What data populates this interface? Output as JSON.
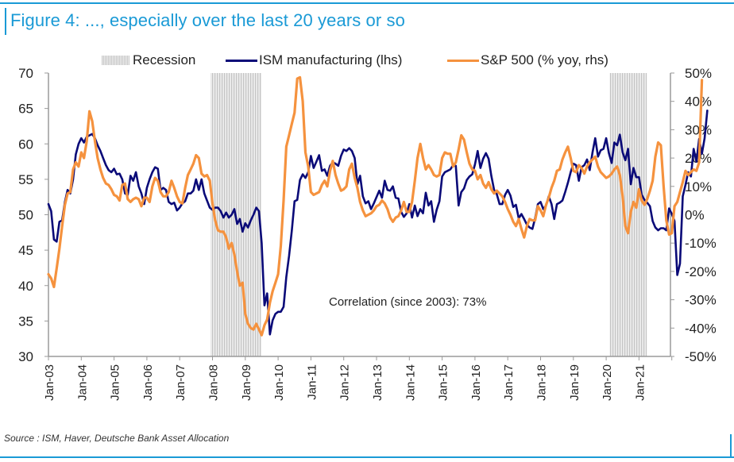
{
  "title": "Figure 4: ..., especially over the last 20 years or so",
  "source": "Source : ISM, Haver, Deutsche Bank Asset Allocation",
  "annotation": "Correlation (since 2003): 73%",
  "legend": {
    "recession": "Recession",
    "ism": "ISM manufacturing (lhs)",
    "sp": "S&P 500 (% yoy, rhs)"
  },
  "colors": {
    "title": "#1a9ad6",
    "ism": "#0a0a78",
    "sp": "#f5923e",
    "recession": "#cfcfcf",
    "axis": "#9a9a9a"
  },
  "chart_data": {
    "type": "line",
    "title": "Figure 4: ..., especially over the last 20 years or so",
    "xlabel": "",
    "ylabel_left": "ISM manufacturing (lhs)",
    "ylabel_right": "S&P 500 (% yoy, rhs)",
    "x_start": "2003-01",
    "x_end": "2021-03",
    "x_frequency": "monthly",
    "x_tick_labels": [
      "Jan-03",
      "Jan-04",
      "Jan-05",
      "Jan-06",
      "Jan-07",
      "Jan-08",
      "Jan-09",
      "Jan-10",
      "Jan-11",
      "Jan-12",
      "Jan-13",
      "Jan-14",
      "Jan-15",
      "Jan-16",
      "Jan-17",
      "Jan-18",
      "Jan-19",
      "Jan-20",
      "Jan-21"
    ],
    "x_axis_end": "2022-01",
    "ylim_left": [
      30,
      70
    ],
    "yticks_left": [
      "70",
      "65",
      "60",
      "55",
      "50",
      "45",
      "40",
      "35",
      "30"
    ],
    "yticks_left_values": [
      70,
      65,
      60,
      55,
      50,
      45,
      40,
      35,
      30
    ],
    "ylim_right": [
      -50,
      50
    ],
    "yticks_right": [
      "50%",
      "40%",
      "30%",
      "20%",
      "10%",
      "0%",
      "-10%",
      "-20%",
      "-30%",
      "-40%",
      "-50%"
    ],
    "yticks_right_values": [
      50,
      40,
      30,
      20,
      10,
      0,
      -10,
      -20,
      -30,
      -40,
      -50
    ],
    "grid": false,
    "legend_position": "top",
    "recessions": [
      {
        "start": "2007-12",
        "end": "2009-06"
      },
      {
        "start": "2020-02",
        "end": "2021-03"
      }
    ],
    "series": [
      {
        "name": "ISM manufacturing (lhs)",
        "axis": "left",
        "values": [
          51.5,
          50.5,
          46.5,
          46.2,
          49.0,
          49.2,
          51.8,
          53.5,
          53.0,
          55.0,
          58.5,
          60.0,
          60.8,
          60.2,
          61.0,
          61.2,
          61.4,
          60.8,
          59.8,
          59.0,
          58.0,
          57.0,
          56.3,
          56.0,
          56.5,
          55.7,
          55.8,
          55.0,
          53.0,
          52.8,
          55.5,
          54.8,
          56.0,
          54.0,
          53.0,
          51.5,
          53.8,
          55.0,
          56.0,
          56.7,
          56.5,
          53.5,
          53.8,
          53.5,
          51.8,
          51.5,
          51.7,
          50.6,
          51.0,
          51.6,
          51.9,
          53.0,
          53.0,
          53.4,
          55.0,
          53.5,
          55.0,
          53.0,
          52.0,
          51.0,
          50.7,
          51.0,
          51.0,
          50.5,
          49.6,
          50.3,
          49.6,
          50.0,
          50.8,
          48.7,
          49.4,
          47.6,
          48.8,
          48.2,
          49.2,
          50.0,
          51.0,
          50.5,
          46.0,
          37.2,
          38.9,
          33.1,
          35.1,
          36.0,
          36.3,
          36.3,
          37.0,
          41.2,
          44.2,
          47.7,
          51.9,
          52.1,
          54.9,
          55.7,
          55.2,
          56.0,
          58.3,
          56.6,
          57.5,
          58.4,
          56.2,
          56.4,
          55.5,
          56.9,
          57.4,
          57.2,
          56.9,
          58.3,
          59.2,
          59.0,
          59.4,
          59.0,
          58.0,
          54.3,
          55.5,
          52.6,
          51.6,
          51.9,
          50.8,
          51.6,
          52.5,
          53.4,
          52.4,
          54.8,
          53.5,
          53.4,
          54.0,
          52.4,
          52.3,
          50.4,
          49.7,
          50.2,
          51.5,
          49.6,
          51.3,
          49.8,
          50.8,
          50.2,
          53.1,
          51.3,
          51.9,
          49.0,
          50.7,
          51.9,
          55.4,
          56.0,
          56.2,
          56.4,
          57.0,
          56.9,
          51.3,
          53.2,
          53.7,
          54.9,
          55.4,
          55.7,
          57.1,
          59.0,
          56.6,
          57.9,
          58.7,
          57.9,
          55.5,
          53.5,
          52.9,
          51.5,
          51.5,
          52.8,
          53.5,
          52.7,
          51.1,
          51.4,
          49.5,
          50.1,
          49.4,
          48.6,
          48.2,
          48.0,
          49.5,
          51.5,
          51.8,
          50.8,
          51.3,
          52.6,
          51.5,
          49.4,
          51.5,
          51.7,
          52.0,
          53.2,
          54.5,
          56.0,
          57.2,
          57.0,
          54.8,
          56.7,
          57.0,
          57.8,
          56.3,
          58.8,
          60.8,
          58.2,
          59.1,
          59.3,
          60.8,
          58.7,
          57.3,
          60.2,
          59.8,
          61.3,
          58.8,
          57.7,
          59.3,
          54.3,
          56.6,
          55.3,
          55.3,
          52.8,
          52.1,
          51.7,
          51.2,
          49.1,
          48.2,
          47.8,
          48.1,
          48.1,
          47.8,
          50.9,
          50.1,
          49.1,
          41.5,
          43.1,
          52.6,
          54.2,
          56.0,
          55.4,
          59.3,
          57.5,
          60.7,
          58.6,
          60.8,
          64.7
        ]
      },
      {
        "name": "S&P 500 (% yoy, rhs)",
        "axis": "right",
        "values": [
          -21.0,
          -22.5,
          -25.5,
          -19.0,
          -12.0,
          -4.0,
          3.5,
          7.5,
          8.0,
          16.0,
          18.5,
          17.0,
          22.0,
          20.0,
          26.0,
          36.5,
          33.0,
          26.0,
          20.0,
          16.0,
          13.0,
          11.0,
          10.5,
          9.0,
          7.0,
          6.5,
          5.0,
          10.5,
          11.0,
          5.5,
          4.5,
          5.5,
          6.0,
          5.5,
          3.0,
          6.0,
          6.0,
          4.5,
          10.0,
          13.0,
          12.0,
          8.0,
          6.5,
          6.5,
          8.0,
          12.0,
          9.5,
          6.5,
          4.5,
          4.0,
          9.5,
          14.0,
          16.0,
          18.0,
          21.0,
          20.0,
          14.5,
          13.5,
          14.0,
          12.0,
          4.0,
          -2.0,
          -5.5,
          -6.0,
          -6.0,
          -8.0,
          -12.0,
          -10.0,
          -14.0,
          -20.0,
          -25.0,
          -24.0,
          -35.0,
          -38.5,
          -40.0,
          -40.5,
          -38.5,
          -40.5,
          -42.5,
          -39.0,
          -37.0,
          -31.0,
          -27.0,
          -24.0,
          -21.0,
          -11.0,
          5.0,
          24.0,
          28.0,
          32.0,
          36.0,
          48.0,
          48.5,
          40.0,
          22.0,
          17.0,
          8.0,
          7.0,
          7.5,
          8.0,
          10.5,
          12.0,
          10.0,
          15.5,
          19.0,
          14.0,
          11.0,
          8.5,
          9.0,
          10.0,
          16.0,
          18.0,
          13.0,
          9.5,
          4.5,
          1.5,
          -0.5,
          0.0,
          0.5,
          1.5,
          3.0,
          3.5,
          5.0,
          4.0,
          2.0,
          -1.0,
          -2.5,
          -1.0,
          -0.5,
          1.5,
          4.5,
          1.0,
          1.0,
          4.5,
          12.0,
          20.0,
          25.0,
          20.0,
          16.0,
          17.5,
          16.0,
          14.0,
          13.5,
          14.0,
          20.0,
          22.0,
          21.5,
          21.5,
          17.0,
          18.5,
          23.0,
          28.0,
          26.5,
          22.0,
          18.0,
          16.0,
          15.5,
          12.5,
          14.0,
          11.0,
          9.5,
          11.5,
          9.0,
          7.5,
          8.5,
          7.5,
          6.5,
          4.5,
          2.0,
          0.0,
          -2.5,
          -4.0,
          -1.5,
          -5.0,
          -8.0,
          -4.0,
          -1.5,
          -2.0,
          -2.0,
          3.0,
          1.5,
          -0.5,
          3.5,
          6.0,
          9.5,
          12.0,
          15.5,
          16.0,
          19.5,
          22.0,
          24.0,
          20.0,
          15.5,
          15.0,
          17.5,
          16.5,
          14.5,
          17.0,
          18.5,
          19.5,
          20.5,
          17.0,
          15.0,
          14.0,
          13.0,
          13.5,
          14.5,
          16.0,
          17.0,
          14.0,
          6.5,
          -4.0,
          -6.5,
          1.0,
          4.5,
          2.5,
          9.0,
          5.0,
          3.5,
          5.5,
          8.5,
          12.0,
          20.5,
          25.5,
          24.5,
          10.0,
          -2.0,
          -7.0,
          -6.5,
          3.0,
          4.5,
          8.0,
          11.5,
          15.5,
          14.0,
          15.0,
          16.0,
          15.5,
          18.5,
          47.5
        ]
      }
    ]
  }
}
